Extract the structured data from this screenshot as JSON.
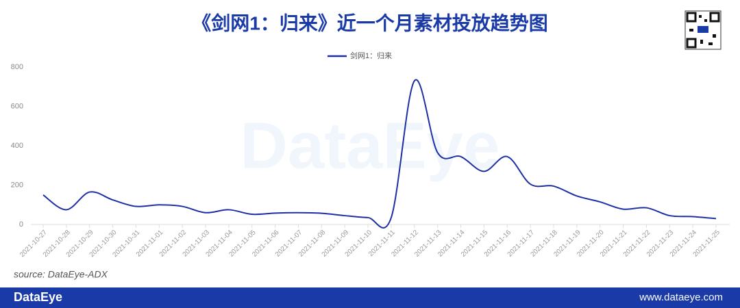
{
  "chart_data": {
    "type": "line",
    "title": "《剑网1：归来》近一个月素材投放趋势图",
    "categories": [
      "2021-10-27",
      "2021-10-28",
      "2021-10-29",
      "2021-10-30",
      "2021-10-31",
      "2021-11-01",
      "2021-11-02",
      "2021-11-03",
      "2021-11-04",
      "2021-11-05",
      "2021-11-06",
      "2021-11-07",
      "2021-11-08",
      "2021-11-09",
      "2021-11-10",
      "2021-11-11",
      "2021-11-12",
      "2021-11-13",
      "2021-11-14",
      "2021-11-15",
      "2021-11-16",
      "2021-11-17",
      "2021-11-18",
      "2021-11-19",
      "2021-11-20",
      "2021-11-21",
      "2021-11-22",
      "2021-11-23",
      "2021-11-24",
      "2021-11-25"
    ],
    "series": [
      {
        "name": "剑网1：归来",
        "color": "#1d2fa5",
        "values": [
          150,
          75,
          165,
          125,
          92,
          100,
          92,
          60,
          75,
          52,
          58,
          60,
          57,
          45,
          35,
          35,
          730,
          365,
          345,
          270,
          345,
          205,
          195,
          145,
          115,
          78,
          85,
          45,
          40,
          30
        ]
      }
    ],
    "ylim": [
      0,
      800
    ],
    "yticks": [
      0,
      200,
      400,
      600,
      800
    ],
    "grid": false,
    "source": "source:  DataEye-ADX",
    "watermark": "DataEye"
  },
  "footer": {
    "brand": "DataEye",
    "url": "www.dataeye.com"
  }
}
